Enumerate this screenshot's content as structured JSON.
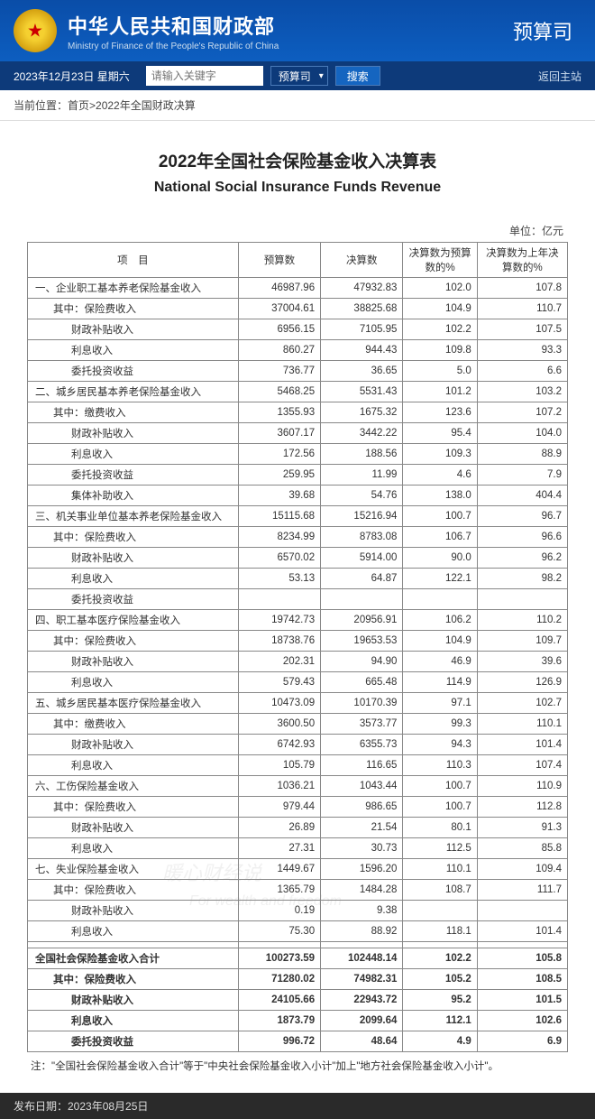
{
  "header": {
    "main_title": "中华人民共和国财政部",
    "sub_title": "Ministry of Finance of the People's Republic of China",
    "department": "预算司"
  },
  "navbar": {
    "date_label": "2023年12月23日  星期六",
    "search_placeholder": "请输入关键字",
    "select_label": "预算司",
    "search_btn": "搜索",
    "home_link": "返回主站"
  },
  "breadcrumb": {
    "prefix": "当前位置：",
    "path": "首页>2022年全国财政决算"
  },
  "document": {
    "title_cn": "2022年全国社会保险基金收入决算表",
    "title_en": "National Social Insurance Funds Revenue",
    "unit_label": "单位：亿元",
    "columns": [
      "项　目",
      "预算数",
      "决算数",
      "决算数为预算数的%",
      "决算数为上年决算数的%"
    ],
    "rows": [
      {
        "label": "一、企业职工基本养老保险基金收入",
        "indent": 0,
        "v": [
          "46987.96",
          "47932.83",
          "102.0",
          "107.8"
        ]
      },
      {
        "label": "其中：保险费收入",
        "indent": 1,
        "v": [
          "37004.61",
          "38825.68",
          "104.9",
          "110.7"
        ]
      },
      {
        "label": "财政补贴收入",
        "indent": 2,
        "v": [
          "6956.15",
          "7105.95",
          "102.2",
          "107.5"
        ]
      },
      {
        "label": "利息收入",
        "indent": 2,
        "v": [
          "860.27",
          "944.43",
          "109.8",
          "93.3"
        ]
      },
      {
        "label": "委托投资收益",
        "indent": 2,
        "v": [
          "736.77",
          "36.65",
          "5.0",
          "6.6"
        ]
      },
      {
        "label": "二、城乡居民基本养老保险基金收入",
        "indent": 0,
        "v": [
          "5468.25",
          "5531.43",
          "101.2",
          "103.2"
        ]
      },
      {
        "label": "其中：缴费收入",
        "indent": 1,
        "v": [
          "1355.93",
          "1675.32",
          "123.6",
          "107.2"
        ]
      },
      {
        "label": "财政补贴收入",
        "indent": 2,
        "v": [
          "3607.17",
          "3442.22",
          "95.4",
          "104.0"
        ]
      },
      {
        "label": "利息收入",
        "indent": 2,
        "v": [
          "172.56",
          "188.56",
          "109.3",
          "88.9"
        ]
      },
      {
        "label": "委托投资收益",
        "indent": 2,
        "v": [
          "259.95",
          "11.99",
          "4.6",
          "7.9"
        ]
      },
      {
        "label": "集体补助收入",
        "indent": 2,
        "v": [
          "39.68",
          "54.76",
          "138.0",
          "404.4"
        ]
      },
      {
        "label": "三、机关事业单位基本养老保险基金收入",
        "indent": 0,
        "v": [
          "15115.68",
          "15216.94",
          "100.7",
          "96.7"
        ]
      },
      {
        "label": "其中：保险费收入",
        "indent": 1,
        "v": [
          "8234.99",
          "8783.08",
          "106.7",
          "96.6"
        ]
      },
      {
        "label": "财政补贴收入",
        "indent": 2,
        "v": [
          "6570.02",
          "5914.00",
          "90.0",
          "96.2"
        ]
      },
      {
        "label": "利息收入",
        "indent": 2,
        "v": [
          "53.13",
          "64.87",
          "122.1",
          "98.2"
        ]
      },
      {
        "label": "委托投资收益",
        "indent": 2,
        "v": [
          "",
          "",
          "",
          ""
        ]
      },
      {
        "label": "四、职工基本医疗保险基金收入",
        "indent": 0,
        "v": [
          "19742.73",
          "20956.91",
          "106.2",
          "110.2"
        ]
      },
      {
        "label": "其中：保险费收入",
        "indent": 1,
        "v": [
          "18738.76",
          "19653.53",
          "104.9",
          "109.7"
        ]
      },
      {
        "label": "财政补贴收入",
        "indent": 2,
        "v": [
          "202.31",
          "94.90",
          "46.9",
          "39.6"
        ]
      },
      {
        "label": "利息收入",
        "indent": 2,
        "v": [
          "579.43",
          "665.48",
          "114.9",
          "126.9"
        ]
      },
      {
        "label": "五、城乡居民基本医疗保险基金收入",
        "indent": 0,
        "v": [
          "10473.09",
          "10170.39",
          "97.1",
          "102.7"
        ]
      },
      {
        "label": "其中：缴费收入",
        "indent": 1,
        "v": [
          "3600.50",
          "3573.77",
          "99.3",
          "110.1"
        ]
      },
      {
        "label": "财政补贴收入",
        "indent": 2,
        "v": [
          "6742.93",
          "6355.73",
          "94.3",
          "101.4"
        ]
      },
      {
        "label": "利息收入",
        "indent": 2,
        "v": [
          "105.79",
          "116.65",
          "110.3",
          "107.4"
        ]
      },
      {
        "label": "六、工伤保险基金收入",
        "indent": 0,
        "v": [
          "1036.21",
          "1043.44",
          "100.7",
          "110.9"
        ]
      },
      {
        "label": "其中：保险费收入",
        "indent": 1,
        "v": [
          "979.44",
          "986.65",
          "100.7",
          "112.8"
        ]
      },
      {
        "label": "财政补贴收入",
        "indent": 2,
        "v": [
          "26.89",
          "21.54",
          "80.1",
          "91.3"
        ]
      },
      {
        "label": "利息收入",
        "indent": 2,
        "v": [
          "27.31",
          "30.73",
          "112.5",
          "85.8"
        ]
      },
      {
        "label": "七、失业保险基金收入",
        "indent": 0,
        "v": [
          "1449.67",
          "1596.20",
          "110.1",
          "109.4"
        ]
      },
      {
        "label": "其中：保险费收入",
        "indent": 1,
        "v": [
          "1365.79",
          "1484.28",
          "108.7",
          "111.7"
        ]
      },
      {
        "label": "财政补贴收入",
        "indent": 2,
        "v": [
          "0.19",
          "9.38",
          "",
          ""
        ]
      },
      {
        "label": "利息收入",
        "indent": 2,
        "v": [
          "75.30",
          "88.92",
          "118.1",
          "101.4"
        ]
      },
      {
        "label": "",
        "indent": 0,
        "v": [
          "",
          "",
          "",
          ""
        ]
      },
      {
        "label": "全国社会保险基金收入合计",
        "indent": 0,
        "total": true,
        "v": [
          "100273.59",
          "102448.14",
          "102.2",
          "105.8"
        ]
      },
      {
        "label": "其中：保险费收入",
        "indent": 1,
        "total": true,
        "v": [
          "71280.02",
          "74982.31",
          "105.2",
          "108.5"
        ]
      },
      {
        "label": "财政补贴收入",
        "indent": 2,
        "total": true,
        "v": [
          "24105.66",
          "22943.72",
          "95.2",
          "101.5"
        ]
      },
      {
        "label": "利息收入",
        "indent": 2,
        "total": true,
        "v": [
          "1873.79",
          "2099.64",
          "112.1",
          "102.6"
        ]
      },
      {
        "label": "委托投资收益",
        "indent": 2,
        "total": true,
        "v": [
          "996.72",
          "48.64",
          "4.9",
          "6.9"
        ]
      }
    ],
    "note": "注：\"全国社会保险基金收入合计\"等于\"中央社会保险基金收入小计\"加上\"地方社会保险基金收入小计\"。",
    "pubdate": "发布日期：2023年08月25日"
  },
  "watermark": {
    "text1": "暖心财经说",
    "text2": "For wealth and freedom"
  },
  "style": {
    "header_bg": "#0a4da8",
    "navbar_bg": "#0d3a7a",
    "border_color": "#888888",
    "text_color": "#333333"
  }
}
